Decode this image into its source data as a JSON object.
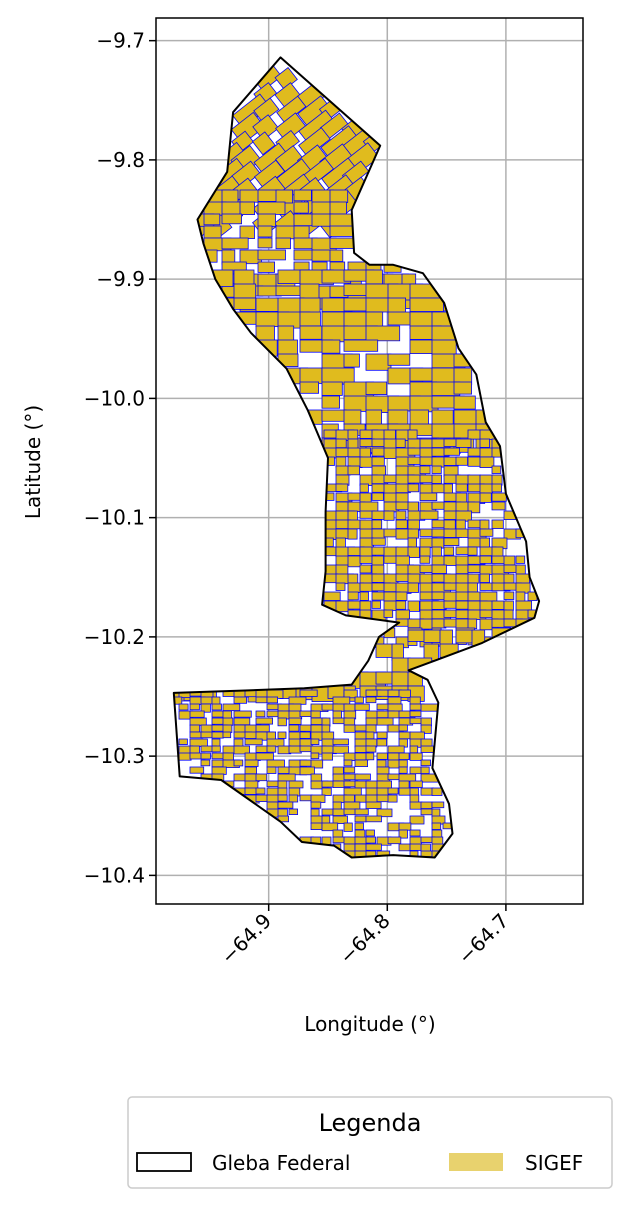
{
  "map": {
    "x_axis": {
      "label": "Longitude (°)",
      "range": [
        -64.995,
        -64.635
      ],
      "ticks": [
        {
          "value": -64.9,
          "label": "−64.9"
        },
        {
          "value": -64.8,
          "label": "−64.8"
        },
        {
          "value": -64.7,
          "label": "−64.7"
        }
      ]
    },
    "y_axis": {
      "label": "Latitude (°)",
      "range": [
        -10.424,
        -9.681
      ],
      "ticks": [
        {
          "value": -9.7,
          "label": "−9.7"
        },
        {
          "value": -9.8,
          "label": "−9.8"
        },
        {
          "value": -9.9,
          "label": "−9.9"
        },
        {
          "value": -10.0,
          "label": "−10.0"
        },
        {
          "value": -10.1,
          "label": "−10.1"
        },
        {
          "value": -10.2,
          "label": "−10.2"
        },
        {
          "value": -10.3,
          "label": "−10.3"
        },
        {
          "value": -10.4,
          "label": "−10.4"
        }
      ]
    },
    "grid": true,
    "legend": {
      "title": "Legenda",
      "placement": "below",
      "items": [
        {
          "label": "Gleba Federal",
          "kind": "outline",
          "color": "#000000"
        },
        {
          "label": "SIGEF",
          "kind": "fill",
          "color": "#e8d26e"
        }
      ]
    },
    "colors": {
      "parcel_fill": "#e0bb1e",
      "parcel_edge": "#0000ff",
      "boundary": "#000000",
      "grid": "#b0b0b0"
    },
    "gleba_boundary": [
      [
        -64.93,
        -9.76
      ],
      [
        -64.89,
        -9.714
      ],
      [
        -64.806,
        -9.788
      ],
      [
        -64.83,
        -9.842
      ],
      [
        -64.828,
        -9.878
      ],
      [
        -64.815,
        -9.888
      ],
      [
        -64.795,
        -9.888
      ],
      [
        -64.77,
        -9.895
      ],
      [
        -64.752,
        -9.92
      ],
      [
        -64.74,
        -9.958
      ],
      [
        -64.725,
        -9.98
      ],
      [
        -64.717,
        -10.02
      ],
      [
        -64.705,
        -10.04
      ],
      [
        -64.7,
        -10.08
      ],
      [
        -64.683,
        -10.12
      ],
      [
        -64.68,
        -10.15
      ],
      [
        -64.672,
        -10.17
      ],
      [
        -64.676,
        -10.184
      ],
      [
        -64.72,
        -10.205
      ],
      [
        -64.76,
        -10.22
      ],
      [
        -64.782,
        -10.228
      ],
      [
        -64.766,
        -10.236
      ],
      [
        -64.757,
        -10.255
      ],
      [
        -64.762,
        -10.31
      ],
      [
        -64.748,
        -10.34
      ],
      [
        -64.745,
        -10.365
      ],
      [
        -64.76,
        -10.385
      ],
      [
        -64.795,
        -10.383
      ],
      [
        -64.83,
        -10.385
      ],
      [
        -64.845,
        -10.375
      ],
      [
        -64.872,
        -10.372
      ],
      [
        -64.89,
        -10.355
      ],
      [
        -64.94,
        -10.32
      ],
      [
        -64.975,
        -10.317
      ],
      [
        -64.98,
        -10.247
      ],
      [
        -64.92,
        -10.245
      ],
      [
        -64.87,
        -10.243
      ],
      [
        -64.83,
        -10.24
      ],
      [
        -64.816,
        -10.22
      ],
      [
        -64.807,
        -10.2
      ],
      [
        -64.79,
        -10.188
      ],
      [
        -64.835,
        -10.182
      ],
      [
        -64.855,
        -10.173
      ],
      [
        -64.852,
        -10.145
      ],
      [
        -64.852,
        -10.095
      ],
      [
        -64.85,
        -10.05
      ],
      [
        -64.867,
        -10.01
      ],
      [
        -64.885,
        -9.975
      ],
      [
        -64.9,
        -9.96
      ],
      [
        -64.915,
        -9.945
      ],
      [
        -64.93,
        -9.925
      ],
      [
        -64.945,
        -9.9
      ],
      [
        -64.955,
        -9.87
      ],
      [
        -64.96,
        -9.85
      ],
      [
        -64.935,
        -9.81
      ]
    ]
  }
}
